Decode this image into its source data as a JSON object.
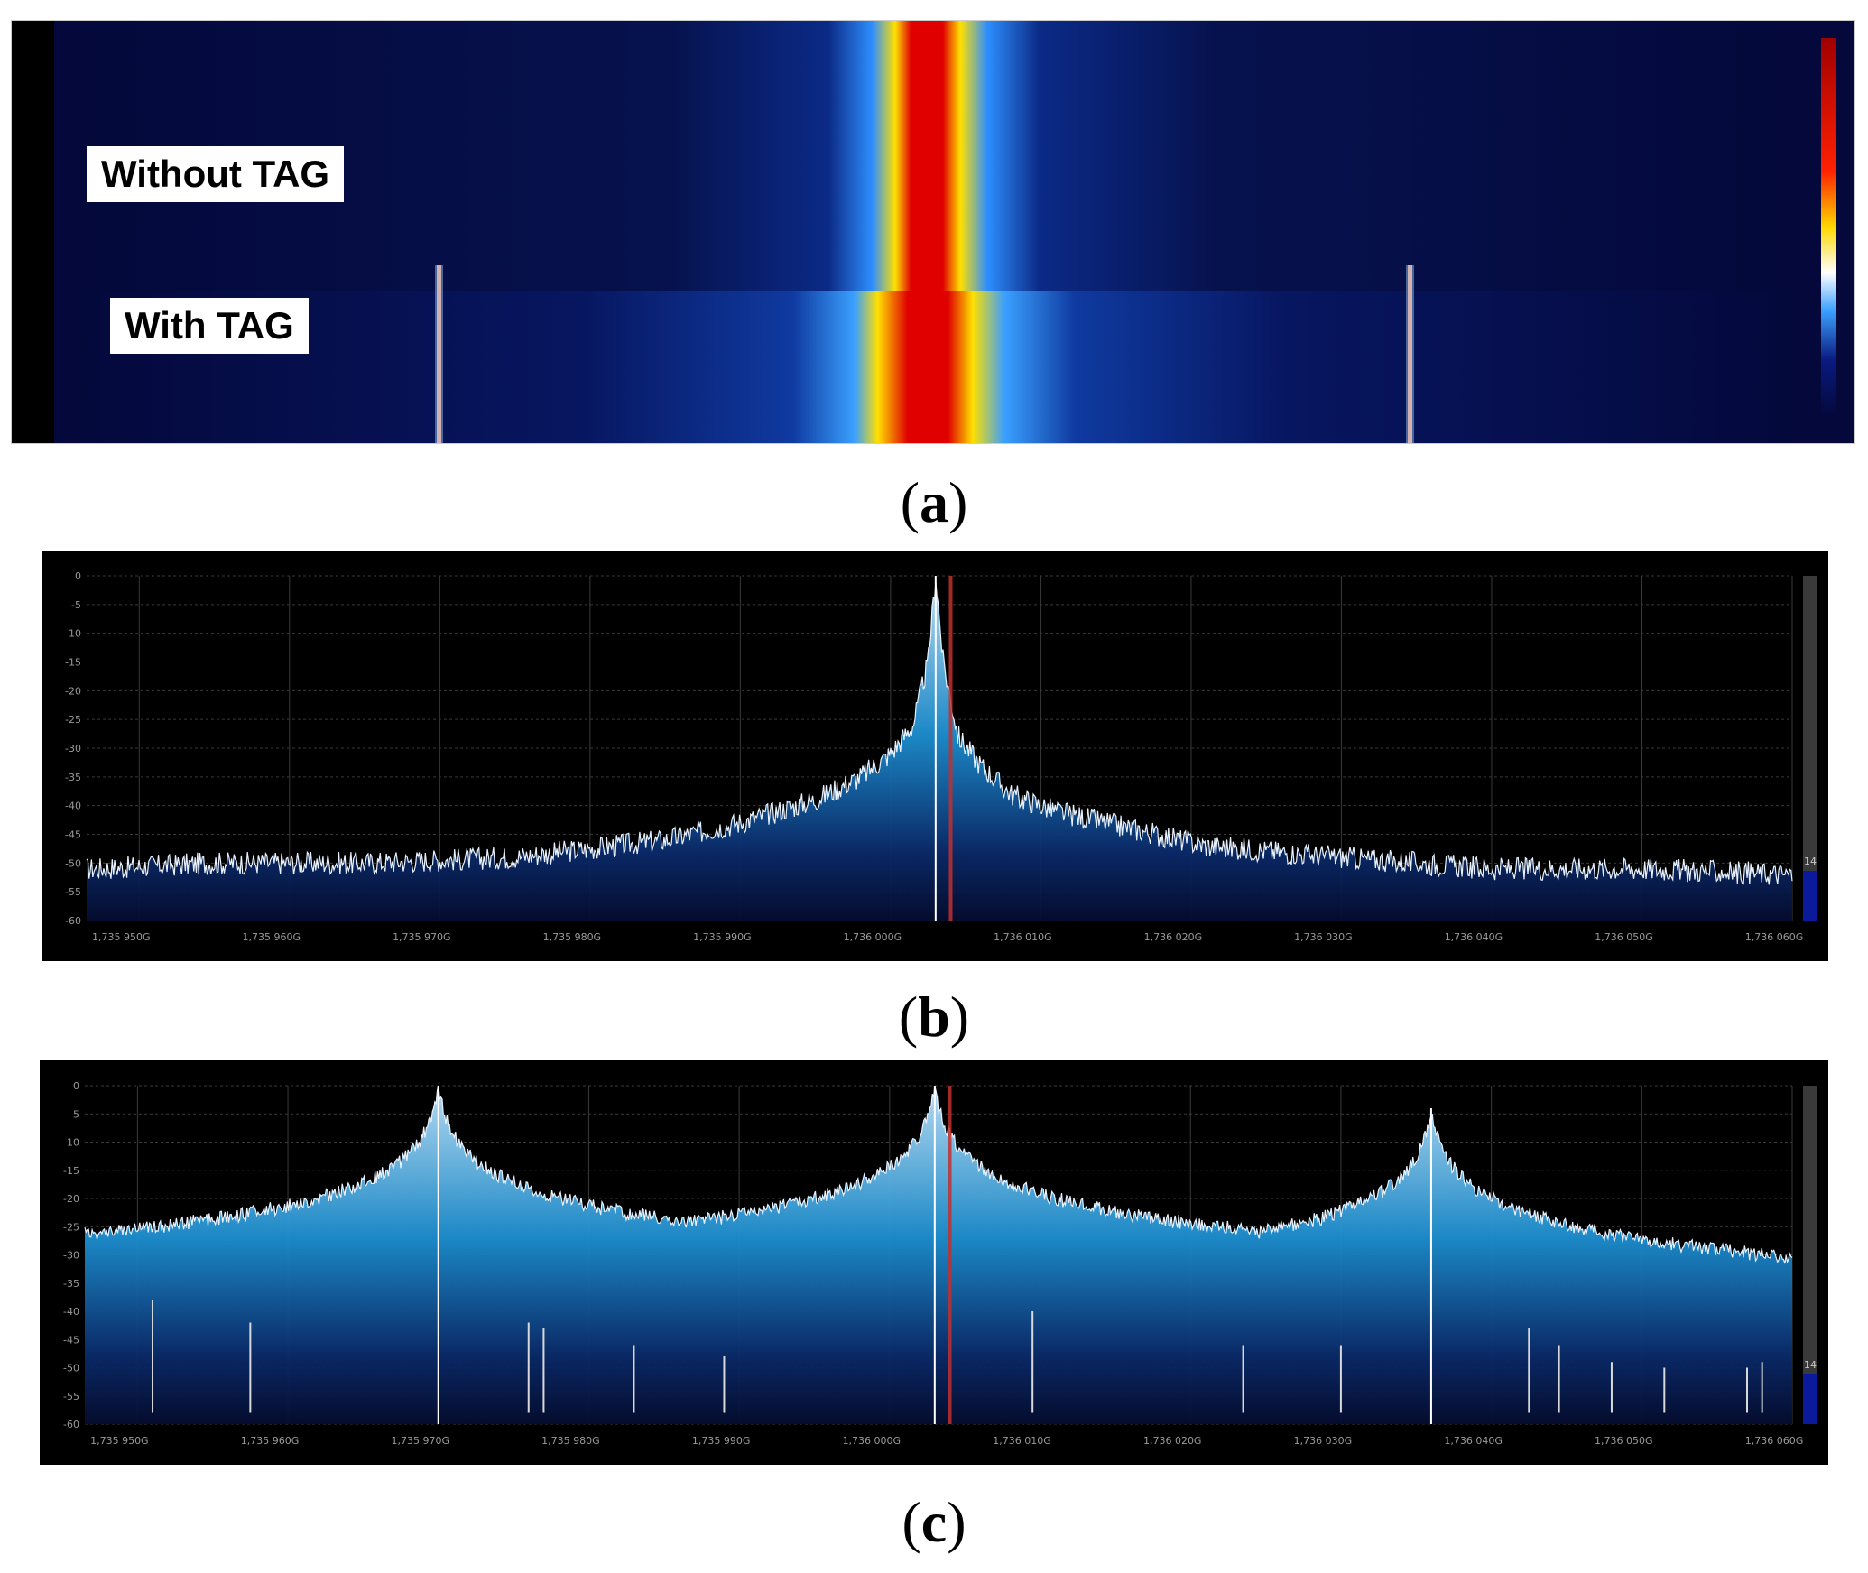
{
  "panels": {
    "a": {
      "caption_open": "(",
      "caption_letter": "a",
      "caption_close": ")",
      "label_without": "Without TAG",
      "label_with": "With TAG",
      "colors": {
        "background": "#04083a",
        "peak_core": "#d40000",
        "peak_mid": "#ffd800",
        "peak_edge": "#1e8fff"
      }
    },
    "b": {
      "caption_open": "(",
      "caption_letter": "b",
      "caption_close": ")",
      "side_value": "14"
    },
    "c": {
      "caption_open": "(",
      "caption_letter": "c",
      "caption_close": ")",
      "side_value": "14"
    }
  },
  "chart_data": [
    {
      "panel": "b",
      "type": "area",
      "x_tick_labels": [
        "1,735 950G",
        "1,735 960G",
        "1,735 970G",
        "1,735 980G",
        "1,735 990G",
        "1,736 000G",
        "1,736 010G",
        "1,736 020G",
        "1,736 030G",
        "1,736 040G",
        "1,736 050G",
        "1,736 060G"
      ],
      "x_ticks_hz": [
        1735950000,
        1735960000,
        1735970000,
        1735980000,
        1735990000,
        1736000000,
        1736010000,
        1736020000,
        1736030000,
        1736040000,
        1736050000,
        1736060000
      ],
      "xlim_hz": [
        1735946500,
        1736060000
      ],
      "y_tick_labels": [
        "0",
        "-5",
        "-10",
        "-15",
        "-20",
        "-25",
        "-30",
        "-35",
        "-40",
        "-45",
        "-50",
        "-55",
        "-60"
      ],
      "ylim": [
        -60,
        0
      ],
      "grid": true,
      "marker_x_hz": 1736004000,
      "peaks": [
        {
          "x_hz": 1736003000,
          "y": 0
        }
      ],
      "noise_floor": -52,
      "series": [
        {
          "x_hz": [
            1735947000,
            1735955000,
            1735965000,
            1735975000,
            1735985000,
            1735990000,
            1735995000,
            1735998000,
            1736000000,
            1736001500,
            1736002500,
            1736003000,
            1736003500,
            1736004500,
            1736006000,
            1736008000,
            1736011000,
            1736016000,
            1736021000,
            1736030000,
            1736040000,
            1736050000,
            1736060000
          ],
          "y": [
            -51,
            -50,
            -50,
            -49,
            -46,
            -43,
            -39,
            -35,
            -31,
            -26,
            -15,
            0,
            -15,
            -28,
            -33,
            -38,
            -41,
            -44,
            -47,
            -49,
            -51,
            -51,
            -52
          ]
        }
      ]
    },
    {
      "panel": "c",
      "type": "area",
      "x_tick_labels": [
        "1,735 950G",
        "1,735 960G",
        "1,735 970G",
        "1,735 980G",
        "1,735 990G",
        "1,736 000G",
        "1,736 010G",
        "1,736 020G",
        "1,736 030G",
        "1,736 040G",
        "1,736 050G",
        "1,736 060G"
      ],
      "x_ticks_hz": [
        1735950000,
        1735960000,
        1735970000,
        1735980000,
        1735990000,
        1736000000,
        1736010000,
        1736020000,
        1736030000,
        1736040000,
        1736050000,
        1736060000
      ],
      "xlim_hz": [
        1735946500,
        1736060000
      ],
      "y_tick_labels": [
        "0",
        "-5",
        "-10",
        "-15",
        "-20",
        "-25",
        "-30",
        "-35",
        "-40",
        "-45",
        "-50",
        "-55",
        "-60"
      ],
      "ylim": [
        -60,
        0
      ],
      "grid": true,
      "marker_x_hz": 1736004000,
      "noise_floor": -58,
      "peaks": [
        {
          "x_hz": 1735970000,
          "y": 0
        },
        {
          "x_hz": 1736003000,
          "y": 0
        },
        {
          "x_hz": 1736036000,
          "y": -4
        }
      ],
      "spurs": [
        {
          "x_hz": 1735951000,
          "y": -38
        },
        {
          "x_hz": 1735957500,
          "y": -42
        },
        {
          "x_hz": 1735976000,
          "y": -42
        },
        {
          "x_hz": 1735977000,
          "y": -43
        },
        {
          "x_hz": 1735983000,
          "y": -46
        },
        {
          "x_hz": 1735989000,
          "y": -48
        },
        {
          "x_hz": 1736009500,
          "y": -40
        },
        {
          "x_hz": 1736023500,
          "y": -46
        },
        {
          "x_hz": 1736030000,
          "y": -46
        },
        {
          "x_hz": 1736042500,
          "y": -43
        },
        {
          "x_hz": 1736044500,
          "y": -46
        },
        {
          "x_hz": 1736048000,
          "y": -49
        },
        {
          "x_hz": 1736051500,
          "y": -50
        },
        {
          "x_hz": 1736057000,
          "y": -50
        },
        {
          "x_hz": 1736058000,
          "y": -49
        }
      ]
    }
  ]
}
